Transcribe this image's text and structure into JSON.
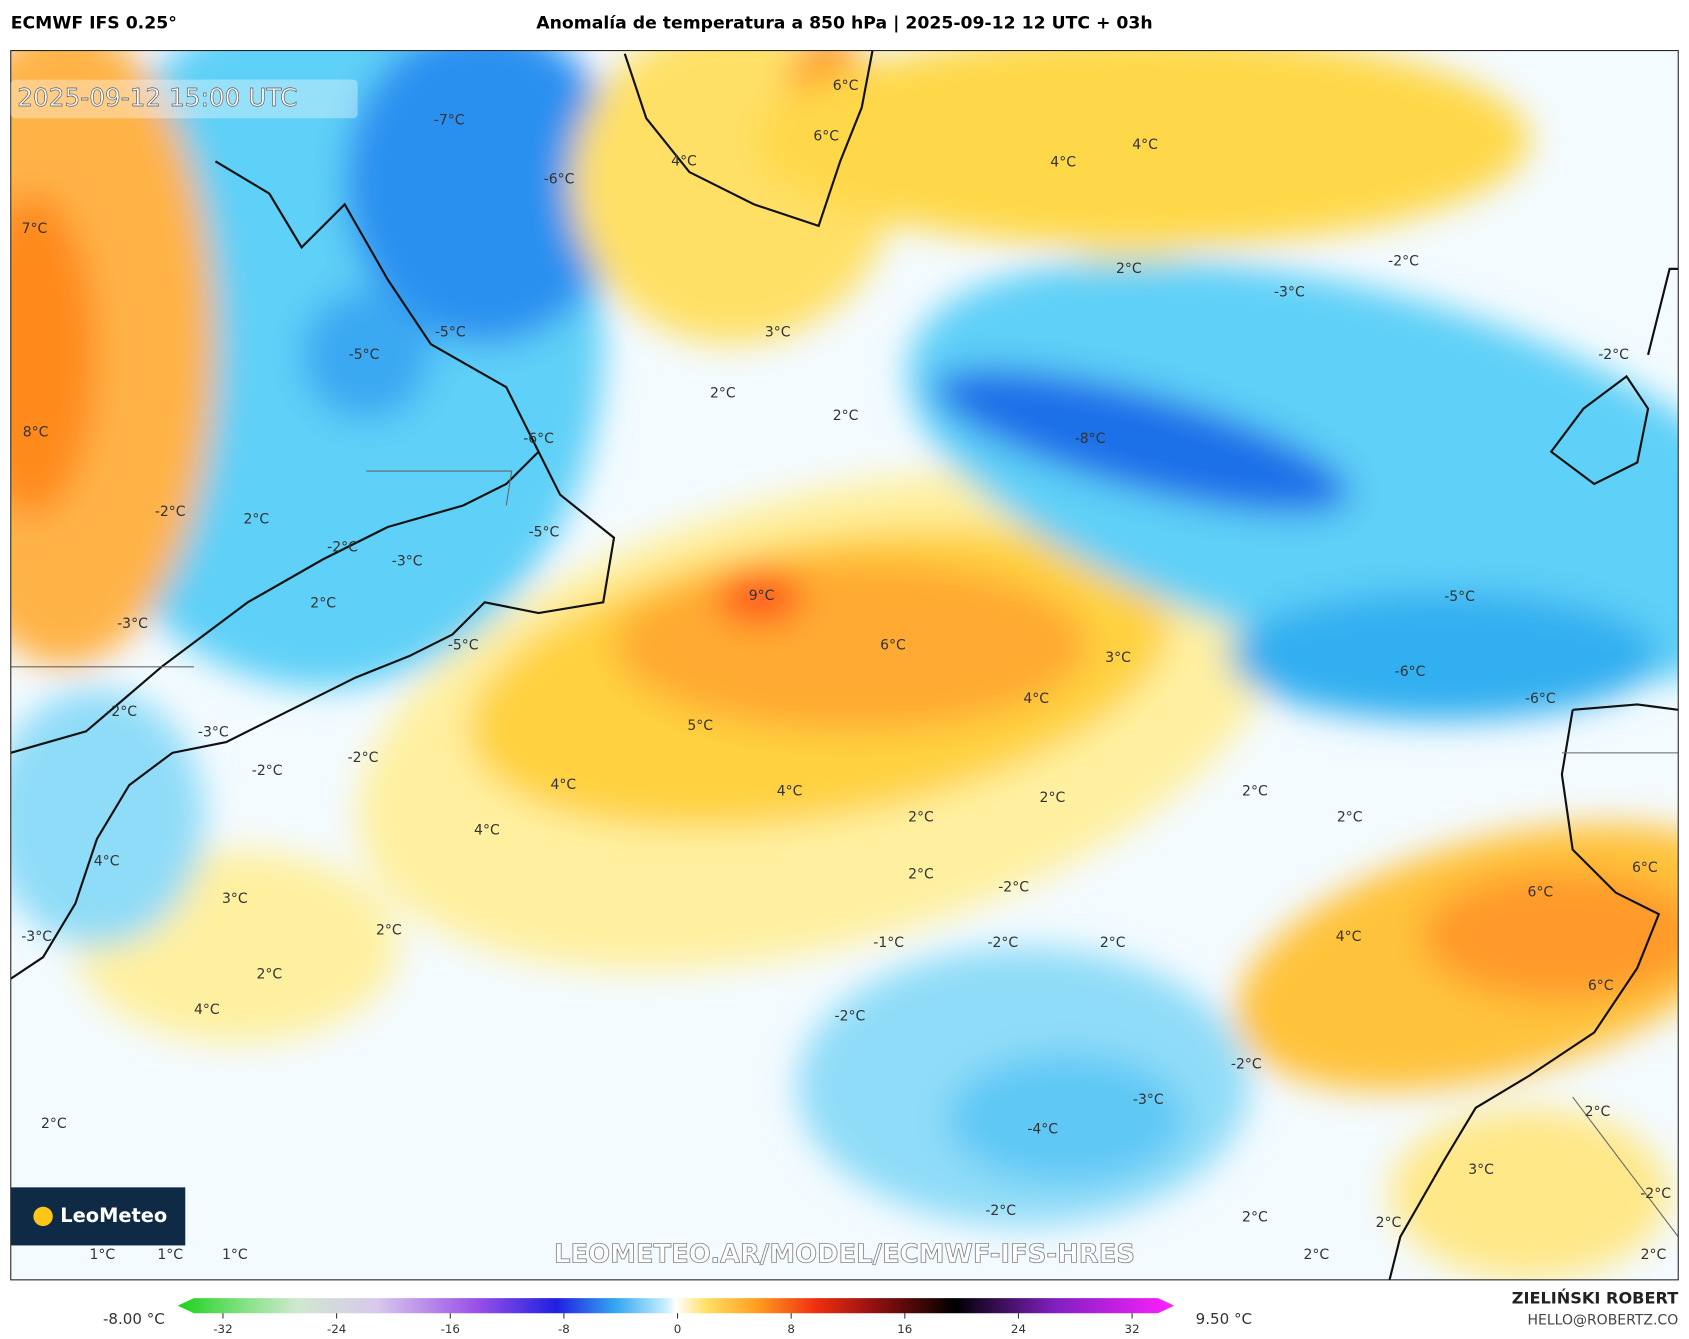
{
  "header": {
    "model": "ECMWF IFS 0.25°",
    "title": "Anomalía de temperatura a 850 hPa | 2025-09-12 12 UTC + 03h",
    "valid_time": "2025-09-12 15:00 UTC"
  },
  "map_labels": [
    "-7°C",
    "-6°C",
    "4°C",
    "6°C",
    "6°C",
    "4°C",
    "4°C",
    "7°C",
    "2°C",
    "-2°C",
    "-3°C",
    "-2°C",
    "3°C",
    "-5°C",
    "-5°C",
    "2°C",
    "2°C",
    "8°C",
    "-6°C",
    "-8°C",
    "-2°C",
    "2°C",
    "-5°C",
    "-2°C",
    "-3°C",
    "2°C",
    "9°C",
    "-5°C",
    "-3°C",
    "-5°C",
    "6°C",
    "3°C",
    "-6°C",
    "-6°C",
    "4°C",
    "-2°C",
    "5°C",
    "-3°C",
    "-2°C",
    "-2°C",
    "4°C",
    "4°C",
    "2°C",
    "2°C",
    "2°C",
    "2°C",
    "4°C",
    "4°C",
    "6°C",
    "6°C",
    "3°C",
    "2°C",
    "-2°C",
    "2°C",
    "4°C",
    "-1°C",
    "-2°C",
    "2°C",
    "-3°C",
    "2°C",
    "6°C",
    "4°C",
    "-2°C",
    "-2°C",
    "-3°C",
    "2°C",
    "2°C",
    "-4°C",
    "3°C",
    "-2°C",
    "-2°C",
    "2°C",
    "2°C",
    "1°C",
    "1°C",
    "1°C",
    "2°C",
    "2°C"
  ],
  "logo": "LeoMeteo",
  "watermark": "LEOMETEO.AR/MODEL/ECMWF-IFS-HRES",
  "colorbar": {
    "min_label": "-8.00 °C",
    "max_label": "9.50 °C",
    "ticks": [
      -32,
      -24,
      -16,
      -8,
      0,
      8,
      16,
      24,
      32
    ]
  },
  "credits": {
    "author": "ZIELIŃSKI ROBERT",
    "contact": "HELLO@ROBERTZ.CO"
  }
}
